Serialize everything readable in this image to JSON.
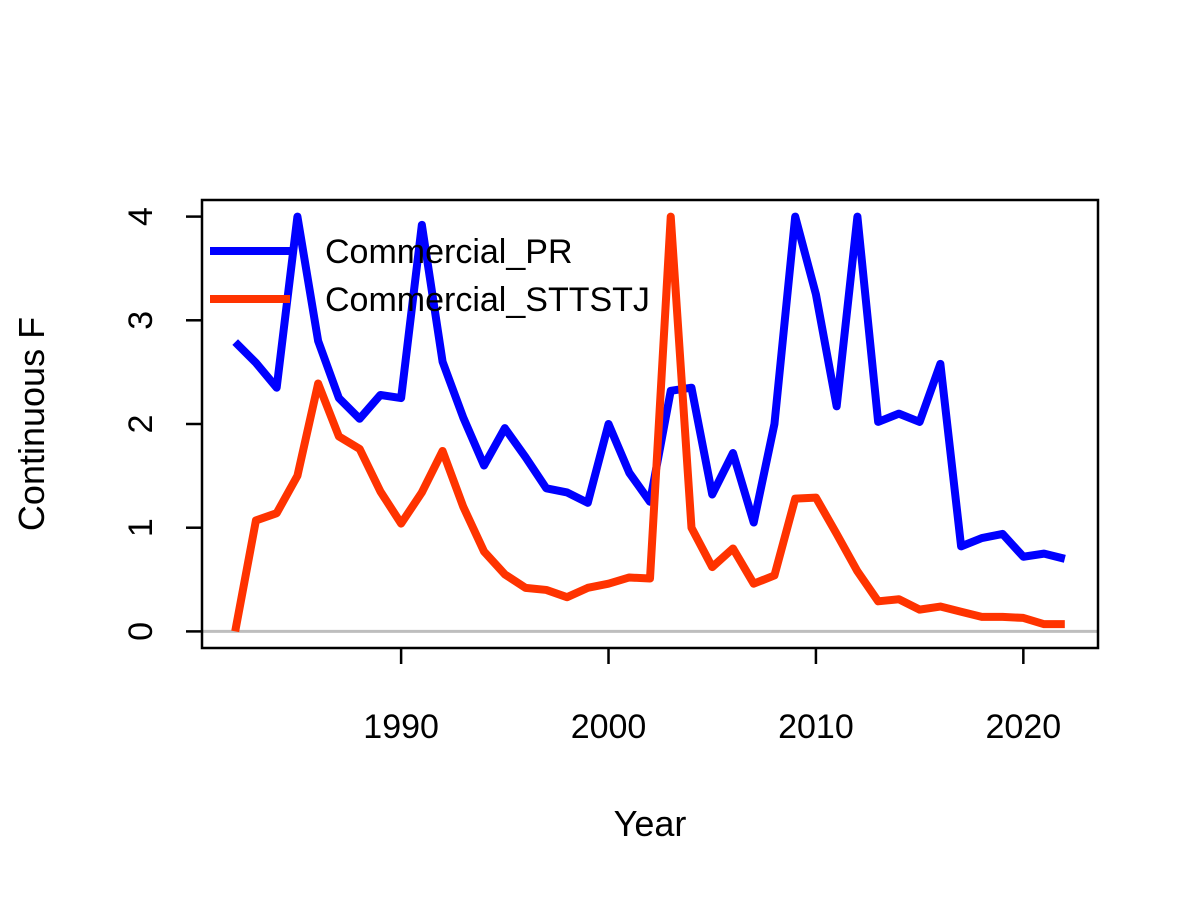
{
  "chart_data": {
    "type": "line",
    "title": "",
    "xlabel": "Year",
    "ylabel": "Continuous F",
    "xlim": [
      1980.4,
      2023.6
    ],
    "ylim": [
      -0.16,
      4.16
    ],
    "x_ticks": [
      1990,
      2000,
      2010,
      2020
    ],
    "y_ticks": [
      0,
      1,
      2,
      3,
      4
    ],
    "reference_line": 0,
    "reference_color": "#bebebe",
    "grid": false,
    "legend_position": "top-left",
    "x": [
      1982,
      1983,
      1984,
      1985,
      1986,
      1987,
      1988,
      1989,
      1990,
      1991,
      1992,
      1993,
      1994,
      1995,
      1996,
      1997,
      1998,
      1999,
      2000,
      2001,
      2002,
      2003,
      2004,
      2005,
      2006,
      2007,
      2008,
      2009,
      2010,
      2011,
      2012,
      2013,
      2014,
      2015,
      2016,
      2017,
      2018,
      2019,
      2020,
      2021,
      2022
    ],
    "series": [
      {
        "name": "Commercial_PR",
        "color": "#0000ff",
        "values": [
          2.79,
          2.59,
          2.35,
          4.0,
          2.8,
          2.25,
          2.05,
          2.28,
          2.25,
          3.92,
          2.6,
          2.06,
          1.6,
          1.96,
          1.68,
          1.38,
          1.34,
          1.24,
          2.0,
          1.53,
          1.25,
          2.32,
          2.35,
          1.32,
          1.72,
          1.05,
          2.0,
          4.0,
          3.25,
          2.17,
          4.0,
          2.02,
          2.1,
          2.02,
          2.58,
          0.82,
          0.9,
          0.94,
          0.72,
          0.75,
          0.7
        ]
      },
      {
        "name": "Commercial_STTSTJ",
        "color": "#ff3300",
        "values": [
          0.0,
          1.07,
          1.14,
          1.5,
          2.39,
          1.88,
          1.76,
          1.35,
          1.04,
          1.34,
          1.74,
          1.2,
          0.77,
          0.55,
          0.42,
          0.4,
          0.33,
          0.42,
          0.46,
          0.52,
          0.51,
          4.0,
          1.0,
          0.62,
          0.8,
          0.46,
          0.54,
          1.28,
          1.29,
          0.94,
          0.58,
          0.29,
          0.31,
          0.21,
          0.24,
          0.19,
          0.14,
          0.14,
          0.13,
          0.07,
          0.07
        ]
      }
    ]
  }
}
